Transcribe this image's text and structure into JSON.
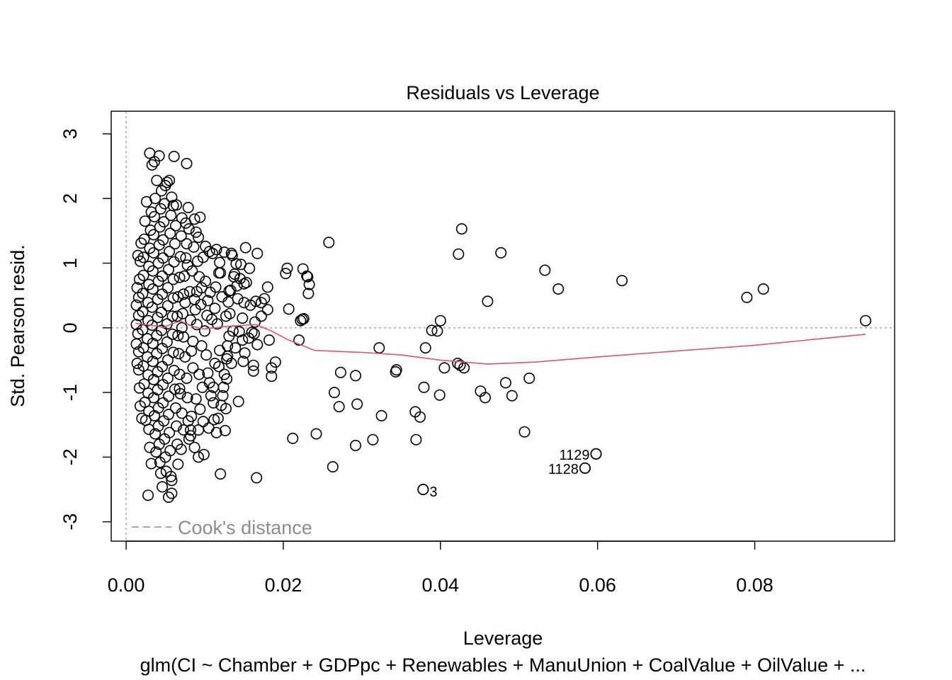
{
  "chart_data": {
    "type": "scatter",
    "title": "Residuals vs Leverage",
    "xlabel": "Leverage",
    "ylabel": "Std. Pearson resid.",
    "subtitle": "glm(CI ~ Chamber + GDPpc + Renewables + ManuUnion + CoalValue + OilValue +  ...",
    "xlim": [
      -0.0019,
      0.0978
    ],
    "ylim": [
      -3.3,
      3.35
    ],
    "x_ticks": [
      0.0,
      0.02,
      0.04,
      0.06,
      0.08
    ],
    "x_tick_labels": [
      "0.00",
      "0.02",
      "0.04",
      "0.06",
      "0.08"
    ],
    "y_ticks": [
      -3,
      -2,
      -1,
      0,
      1,
      2,
      3
    ],
    "y_tick_labels": [
      "-3",
      "-2",
      "-1",
      "0",
      "1",
      "2",
      "3"
    ],
    "grid": false,
    "reference_lines": {
      "horizontal_y": 0,
      "vertical_x": 0
    },
    "legend": {
      "position": "bottom-left",
      "entries": [
        "Cook's distance"
      ]
    },
    "smoother_color": "#DF536B",
    "reference_color": "#9E9E9E",
    "point_labels": [
      {
        "text": "1129",
        "x": 0.0598,
        "y": -1.95
      },
      {
        "text": "1128",
        "x": 0.0584,
        "y": -2.17
      },
      {
        "text": "3",
        "x": 0.0378,
        "y": -2.5
      }
    ],
    "points": [
      [
        0.0941,
        0.11
      ],
      [
        0.0811,
        0.6
      ],
      [
        0.079,
        0.47
      ],
      [
        0.0631,
        0.73
      ],
      [
        0.0598,
        -1.95
      ],
      [
        0.0584,
        -2.17
      ],
      [
        0.055,
        0.6
      ],
      [
        0.0533,
        0.89
      ],
      [
        0.0513,
        -0.78
      ],
      [
        0.0507,
        -1.61
      ],
      [
        0.0491,
        -1.05
      ],
      [
        0.0483,
        -0.85
      ],
      [
        0.0477,
        1.16
      ],
      [
        0.046,
        0.41
      ],
      [
        0.0457,
        -1.08
      ],
      [
        0.0451,
        -0.98
      ],
      [
        0.043,
        -0.62
      ],
      [
        0.0427,
        1.53
      ],
      [
        0.0425,
        -0.58
      ],
      [
        0.0423,
        1.14
      ],
      [
        0.0422,
        -0.55
      ],
      [
        0.0405,
        -0.62
      ],
      [
        0.04,
        0.11
      ],
      [
        0.0399,
        -1.04
      ],
      [
        0.0396,
        -0.05
      ],
      [
        0.0389,
        -0.04
      ],
      [
        0.0381,
        -0.31
      ],
      [
        0.0379,
        -0.92
      ],
      [
        0.0378,
        -2.5
      ],
      [
        0.0374,
        -1.38
      ],
      [
        0.0368,
        -1.3
      ],
      [
        0.0369,
        -1.73
      ],
      [
        0.0344,
        -0.65
      ],
      [
        0.0343,
        -0.68
      ],
      [
        0.0325,
        -1.36
      ],
      [
        0.0322,
        -0.31
      ],
      [
        0.0314,
        -1.73
      ],
      [
        0.0294,
        -1.18
      ],
      [
        0.0292,
        -0.74
      ],
      [
        0.0292,
        -1.82
      ],
      [
        0.0271,
        -1.22
      ],
      [
        0.0273,
        -0.69
      ],
      [
        0.0265,
        -1.0
      ],
      [
        0.0263,
        -2.15
      ],
      [
        0.0258,
        1.32
      ],
      [
        0.0242,
        -1.64
      ],
      [
        0.0212,
        -1.71
      ],
      [
        0.0233,
        0.67
      ],
      [
        0.0232,
        0.53
      ],
      [
        0.023,
        0.8
      ],
      [
        0.0231,
        0.79
      ],
      [
        0.0225,
        0.91
      ],
      [
        0.0226,
        0.14
      ],
      [
        0.0224,
        0.13
      ],
      [
        0.0222,
        0.11
      ],
      [
        0.022,
        -0.19
      ],
      [
        0.0205,
        0.92
      ],
      [
        0.0203,
        0.84
      ],
      [
        0.0207,
        0.29
      ],
      [
        0.018,
        0.63
      ],
      [
        0.018,
        0.28
      ],
      [
        0.0182,
        -0.19
      ],
      [
        0.0185,
        -0.62
      ],
      [
        0.0185,
        -0.75
      ],
      [
        0.019,
        -0.53
      ],
      [
        0.0172,
        0.39
      ],
      [
        0.0172,
        0.18
      ],
      [
        0.0176,
        0.45
      ],
      [
        0.0167,
        1.15
      ],
      [
        0.0165,
        0.41
      ],
      [
        0.0164,
        0.09
      ],
      [
        0.0163,
        -0.09
      ],
      [
        0.0167,
        -0.26
      ],
      [
        0.0166,
        -2.32
      ],
      [
        0.0162,
        -0.58
      ],
      [
        0.0162,
        -0.67
      ],
      [
        0.0157,
        0.92
      ],
      [
        0.0152,
        1.24
      ],
      [
        0.015,
        0.68
      ],
      [
        0.015,
        0.39
      ],
      [
        0.0148,
        -0.19
      ],
      [
        0.0143,
        -1.14
      ],
      [
        0.014,
        0.99
      ],
      [
        0.0145,
        0.76
      ],
      [
        0.0134,
        1.15
      ],
      [
        0.0133,
        0.58
      ],
      [
        0.013,
        0.4
      ],
      [
        0.0129,
        -0.28
      ],
      [
        0.0128,
        -0.48
      ],
      [
        0.0128,
        -0.79
      ],
      [
        0.0126,
        -1.59
      ],
      [
        0.0121,
        -1.2
      ],
      [
        0.012,
        -2.26
      ],
      [
        0.0119,
        1.01
      ],
      [
        0.0118,
        0.85
      ],
      [
        0.0116,
        0.06
      ],
      [
        0.0113,
        -0.55
      ],
      [
        0.0111,
        -1.16
      ],
      [
        0.0106,
        -0.85
      ],
      [
        0.0105,
        -1.55
      ],
      [
        0.0103,
        0.19
      ],
      [
        0.0101,
        1.26
      ],
      [
        0.0099,
        -1.96
      ],
      [
        0.0094,
        1.71
      ],
      [
        0.0091,
        1.03
      ],
      [
        0.0088,
        0.28
      ],
      [
        0.0085,
        -0.21
      ],
      [
        0.0083,
        -1.37
      ],
      [
        0.0092,
        -2.0
      ],
      [
        0.0082,
        -1.67
      ],
      [
        0.0079,
        1.86
      ],
      [
        0.0078,
        0.97
      ],
      [
        0.0075,
        0.39
      ],
      [
        0.0071,
        0.0
      ],
      [
        0.0068,
        -0.94
      ],
      [
        0.0066,
        -2.11
      ],
      [
        0.0061,
        2.65
      ],
      [
        0.006,
        1.89
      ],
      [
        0.0058,
        -2.56
      ],
      [
        0.0058,
        -2.36
      ],
      [
        0.0077,
        2.54
      ],
      [
        0.0055,
        2.28
      ],
      [
        0.0054,
        -2.62
      ],
      [
        0.0046,
        -2.46
      ],
      [
        0.0028,
        -2.59
      ],
      [
        0.0036,
        2.57
      ],
      [
        0.0042,
        2.66
      ],
      [
        0.003,
        2.7
      ],
      [
        0.0033,
        2.52
      ],
      [
        0.0135,
        1.12
      ],
      [
        0.0125,
        1.17
      ],
      [
        0.011,
        1.15
      ],
      [
        0.0115,
        1.21
      ],
      [
        0.0098,
        1.09
      ],
      [
        0.0093,
        0.79
      ],
      [
        0.009,
        0.56
      ],
      [
        0.0087,
        0.44
      ],
      [
        0.0095,
        0.36
      ],
      [
        0.0107,
        0.55
      ],
      [
        0.0114,
        0.63
      ],
      [
        0.012,
        0.85
      ],
      [
        0.0131,
        0.57
      ],
      [
        0.0137,
        0.79
      ],
      [
        0.0141,
        0.65
      ],
      [
        0.0146,
        0.98
      ],
      [
        0.0138,
        0.83
      ],
      [
        0.0153,
        0.7
      ],
      [
        0.0158,
        0.35
      ],
      [
        0.0109,
        0.13
      ],
      [
        0.0104,
        0.42
      ],
      [
        0.0096,
        0.62
      ],
      [
        0.01,
        -0.05
      ],
      [
        0.0102,
        -0.42
      ],
      [
        0.0104,
        -0.7
      ],
      [
        0.0108,
        -1.05
      ],
      [
        0.0112,
        -1.42
      ],
      [
        0.0115,
        -1.62
      ],
      [
        0.0123,
        -1.05
      ],
      [
        0.0125,
        -0.72
      ],
      [
        0.0129,
        -0.44
      ],
      [
        0.0131,
        -0.13
      ],
      [
        0.0127,
        0.18
      ],
      [
        0.0134,
        -0.55
      ],
      [
        0.0139,
        -0.31
      ],
      [
        0.0144,
        -0.06
      ],
      [
        0.0148,
        0.15
      ],
      [
        0.016,
        -0.07
      ],
      [
        0.0156,
        -0.16
      ],
      [
        0.0151,
        -0.39
      ],
      [
        0.0097,
        -0.92
      ],
      [
        0.0094,
        -1.26
      ],
      [
        0.0092,
        -1.58
      ],
      [
        0.0087,
        -1.85
      ],
      [
        0.0089,
        -1.1
      ],
      [
        0.0085,
        -0.62
      ],
      [
        0.0083,
        -0.36
      ],
      [
        0.0082,
        0.12
      ],
      [
        0.0081,
        0.56
      ],
      [
        0.0084,
        0.88
      ],
      [
        0.0086,
        1.25
      ],
      [
        0.0089,
        1.48
      ],
      [
        0.0087,
        1.68
      ],
      [
        0.008,
        1.53
      ],
      [
        0.0077,
        1.3
      ],
      [
        0.0076,
        1.08
      ],
      [
        0.0074,
        0.8
      ],
      [
        0.0073,
        0.52
      ],
      [
        0.0072,
        0.22
      ],
      [
        0.0073,
        -0.14
      ],
      [
        0.0075,
        -0.45
      ],
      [
        0.0077,
        -0.78
      ],
      [
        0.0078,
        -1.08
      ],
      [
        0.0079,
        -1.44
      ],
      [
        0.008,
        -1.72
      ],
      [
        0.0073,
        -1.58
      ],
      [
        0.0071,
        -1.32
      ],
      [
        0.0069,
        -1.02
      ],
      [
        0.0068,
        -0.72
      ],
      [
        0.0067,
        -0.4
      ],
      [
        0.0066,
        -0.12
      ],
      [
        0.0065,
        0.18
      ],
      [
        0.0066,
        0.48
      ],
      [
        0.0068,
        0.78
      ],
      [
        0.0069,
        1.1
      ],
      [
        0.007,
        1.42
      ],
      [
        0.0071,
        1.7
      ],
      [
        0.0063,
        1.58
      ],
      [
        0.0062,
        1.3
      ],
      [
        0.0061,
        1.02
      ],
      [
        0.006,
        0.75
      ],
      [
        0.006,
        0.46
      ],
      [
        0.0059,
        0.18
      ],
      [
        0.0059,
        -0.1
      ],
      [
        0.006,
        -0.38
      ],
      [
        0.0061,
        -0.66
      ],
      [
        0.0062,
        -0.95
      ],
      [
        0.0063,
        -1.24
      ],
      [
        0.0064,
        -1.52
      ],
      [
        0.0065,
        -1.8
      ],
      [
        0.0056,
        -1.9
      ],
      [
        0.0055,
        -1.62
      ],
      [
        0.0054,
        -1.34
      ],
      [
        0.0054,
        -1.06
      ],
      [
        0.0053,
        -0.78
      ],
      [
        0.0053,
        -0.5
      ],
      [
        0.0052,
        -0.22
      ],
      [
        0.0052,
        0.06
      ],
      [
        0.0053,
        0.34
      ],
      [
        0.0053,
        0.62
      ],
      [
        0.0054,
        0.9
      ],
      [
        0.0055,
        1.18
      ],
      [
        0.0056,
        1.46
      ],
      [
        0.0057,
        1.74
      ],
      [
        0.0058,
        2.02
      ],
      [
        0.005,
        2.2
      ],
      [
        0.0049,
        1.92
      ],
      [
        0.0048,
        1.64
      ],
      [
        0.0047,
        1.36
      ],
      [
        0.0047,
        1.08
      ],
      [
        0.0046,
        0.8
      ],
      [
        0.0046,
        0.52
      ],
      [
        0.0045,
        0.24
      ],
      [
        0.0045,
        -0.04
      ],
      [
        0.0046,
        -0.32
      ],
      [
        0.0046,
        -0.6
      ],
      [
        0.0047,
        -0.88
      ],
      [
        0.0047,
        -1.16
      ],
      [
        0.0048,
        -1.44
      ],
      [
        0.0049,
        -1.72
      ],
      [
        0.005,
        -2.0
      ],
      [
        0.0051,
        -2.22
      ],
      [
        0.0043,
        -2.08
      ],
      [
        0.0042,
        -1.8
      ],
      [
        0.0041,
        -1.52
      ],
      [
        0.0041,
        -1.24
      ],
      [
        0.004,
        -0.96
      ],
      [
        0.004,
        -0.68
      ],
      [
        0.0039,
        -0.4
      ],
      [
        0.0039,
        -0.12
      ],
      [
        0.004,
        0.16
      ],
      [
        0.004,
        0.44
      ],
      [
        0.0041,
        0.72
      ],
      [
        0.0041,
        1.0
      ],
      [
        0.0042,
        1.28
      ],
      [
        0.0043,
        1.56
      ],
      [
        0.0044,
        1.84
      ],
      [
        0.0045,
        2.12
      ],
      [
        0.0037,
        2.0
      ],
      [
        0.0036,
        1.72
      ],
      [
        0.0035,
        1.44
      ],
      [
        0.0035,
        1.16
      ],
      [
        0.0034,
        0.88
      ],
      [
        0.0034,
        0.6
      ],
      [
        0.0033,
        0.32
      ],
      [
        0.0033,
        0.04
      ],
      [
        0.0034,
        -0.24
      ],
      [
        0.0034,
        -0.52
      ],
      [
        0.0035,
        -0.8
      ],
      [
        0.0035,
        -1.08
      ],
      [
        0.0036,
        -1.36
      ],
      [
        0.0037,
        -1.64
      ],
      [
        0.0038,
        -1.92
      ],
      [
        0.003,
        -1.85
      ],
      [
        0.0029,
        -1.57
      ],
      [
        0.0029,
        -1.29
      ],
      [
        0.0028,
        -1.01
      ],
      [
        0.0028,
        -0.73
      ],
      [
        0.0027,
        -0.45
      ],
      [
        0.0027,
        -0.17
      ],
      [
        0.0028,
        0.11
      ],
      [
        0.0028,
        0.39
      ],
      [
        0.0029,
        0.67
      ],
      [
        0.0029,
        0.95
      ],
      [
        0.003,
        1.23
      ],
      [
        0.0031,
        1.51
      ],
      [
        0.0032,
        1.79
      ],
      [
        0.0024,
        1.65
      ],
      [
        0.0023,
        1.37
      ],
      [
        0.0022,
        1.09
      ],
      [
        0.0022,
        0.81
      ],
      [
        0.0021,
        0.53
      ],
      [
        0.0021,
        0.25
      ],
      [
        0.0021,
        -0.03
      ],
      [
        0.0022,
        -0.31
      ],
      [
        0.0022,
        -0.59
      ],
      [
        0.0023,
        -0.87
      ],
      [
        0.0024,
        -1.15
      ],
      [
        0.0025,
        -1.43
      ],
      [
        0.0018,
        -1.21
      ],
      [
        0.0017,
        -0.93
      ],
      [
        0.0016,
        -0.65
      ],
      [
        0.0016,
        -0.37
      ],
      [
        0.0015,
        -0.09
      ],
      [
        0.0016,
        0.19
      ],
      [
        0.0016,
        0.47
      ],
      [
        0.0017,
        0.75
      ],
      [
        0.0018,
        1.03
      ],
      [
        0.0019,
        1.31
      ],
      [
        0.0013,
        0.35
      ],
      [
        0.0013,
        0.05
      ],
      [
        0.0013,
        -0.25
      ],
      [
        0.0014,
        -0.55
      ],
      [
        0.0014,
        0.62
      ],
      [
        0.0015,
        1.12
      ],
      [
        0.002,
        -1.4
      ],
      [
        0.0026,
        1.95
      ],
      [
        0.0032,
        -2.1
      ],
      [
        0.0039,
        2.28
      ],
      [
        0.0044,
        -2.25
      ],
      [
        0.0052,
        2.25
      ],
      [
        0.0057,
        -2.3
      ],
      [
        0.0064,
        1.9
      ],
      [
        0.007,
        -1.88
      ],
      [
        0.0076,
        1.62
      ],
      [
        0.0082,
        -1.58
      ],
      [
        0.0092,
        1.4
      ],
      [
        0.0098,
        -1.45
      ],
      [
        0.0106,
        1.18
      ],
      [
        0.009,
        0.05
      ],
      [
        0.0096,
        -0.28
      ],
      [
        0.0101,
        0.72
      ],
      [
        0.0093,
        -0.72
      ],
      [
        0.0113,
        0.3
      ],
      [
        0.0119,
        -0.35
      ],
      [
        0.0122,
        0.48
      ],
      [
        0.0111,
        -0.92
      ],
      [
        0.0118,
        -0.6
      ],
      [
        0.0124,
        -0.92
      ],
      [
        0.0132,
        0.22
      ],
      [
        0.0136,
        -0.05
      ],
      [
        0.0142,
        0.45
      ],
      [
        0.0149,
        -0.52
      ],
      [
        0.0127,
        -1.25
      ],
      [
        0.0117,
        -1.4
      ]
    ],
    "smoother": [
      [
        0.0012,
        0.07
      ],
      [
        0.003,
        0.04
      ],
      [
        0.0048,
        0.01
      ],
      [
        0.0062,
        0.08
      ],
      [
        0.007,
        0.1
      ],
      [
        0.0085,
        0.02
      ],
      [
        0.01,
        -0.02
      ],
      [
        0.0125,
        0.02
      ],
      [
        0.0165,
        0.05
      ],
      [
        0.0185,
        -0.05
      ],
      [
        0.0205,
        -0.18
      ],
      [
        0.024,
        -0.35
      ],
      [
        0.03,
        -0.38
      ],
      [
        0.035,
        -0.42
      ],
      [
        0.04,
        -0.5
      ],
      [
        0.046,
        -0.56
      ],
      [
        0.052,
        -0.53
      ],
      [
        0.06,
        -0.45
      ],
      [
        0.07,
        -0.36
      ],
      [
        0.08,
        -0.27
      ],
      [
        0.0941,
        -0.1
      ]
    ]
  }
}
